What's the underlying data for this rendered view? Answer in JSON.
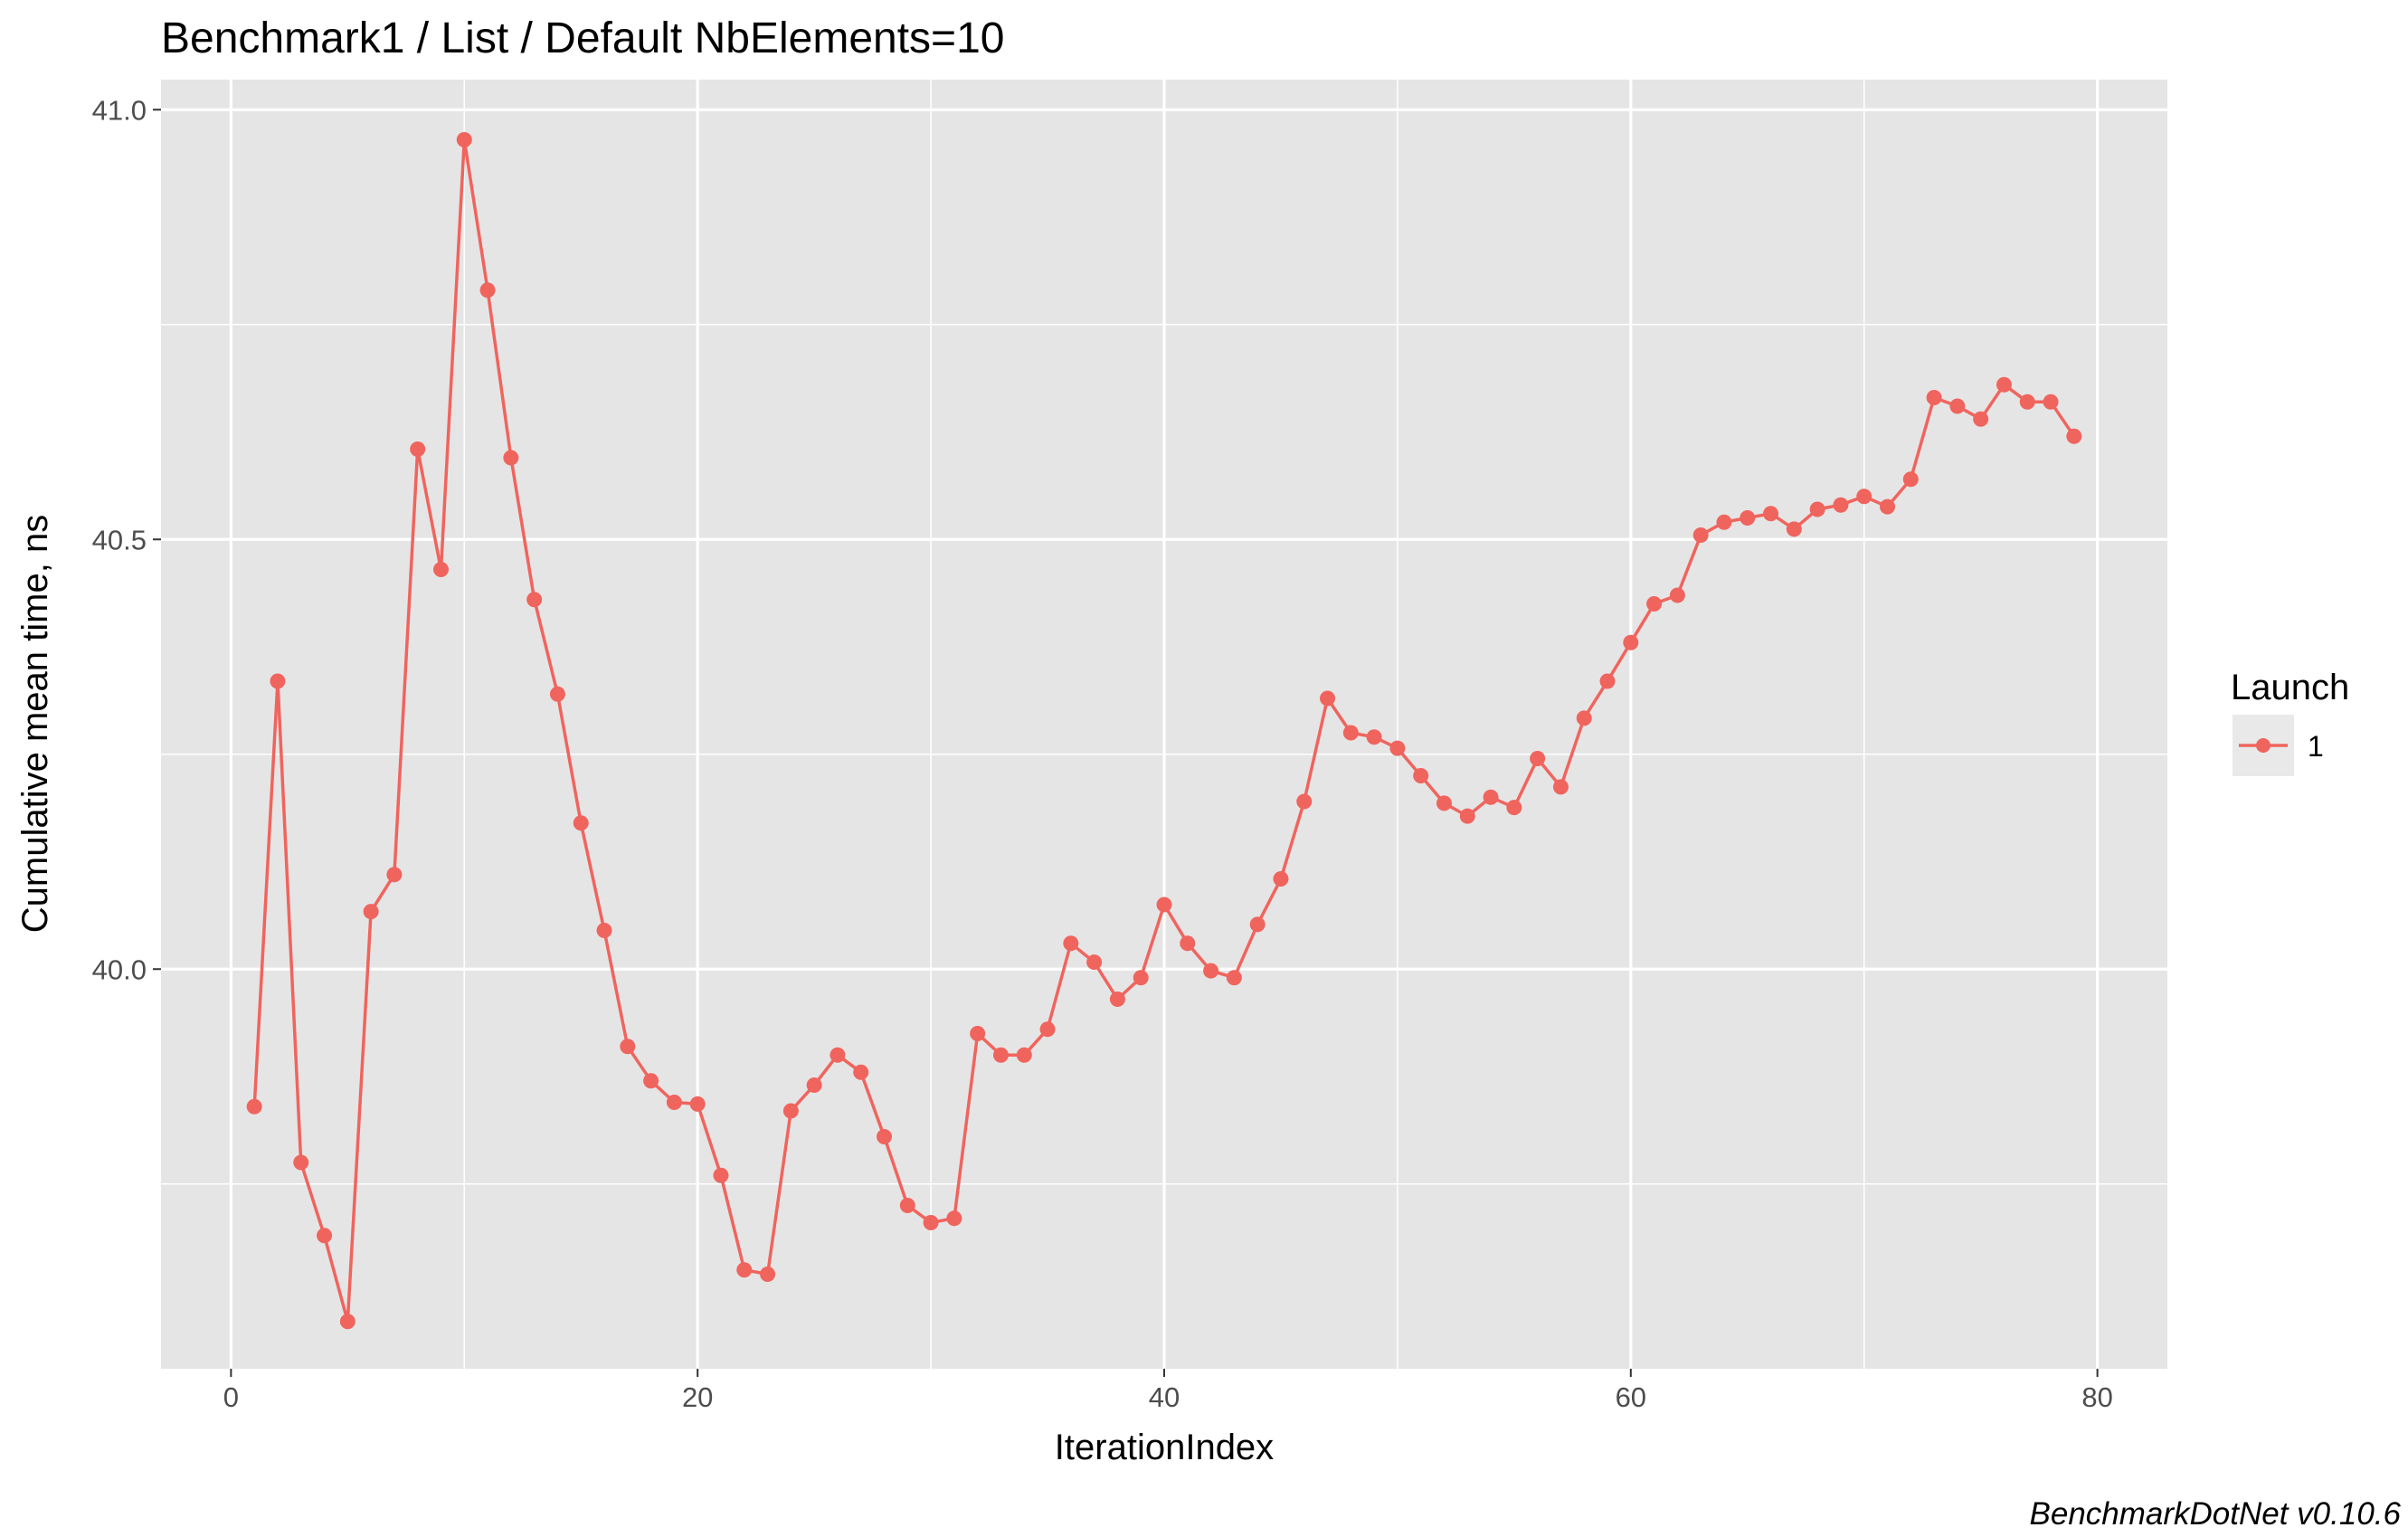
{
  "chart_data": {
    "type": "line",
    "title": "Benchmark1 / List / Default NbElements=10",
    "xlabel": "IterationIndex",
    "ylabel": "Cumulative mean time, ns",
    "caption": "BenchmarkDotNet v0.10.6",
    "xlim": [
      -3,
      83
    ],
    "ylim": [
      39.535,
      41.035
    ],
    "x_ticks": [
      {
        "value": 0,
        "label": "0"
      },
      {
        "value": 20,
        "label": "20"
      },
      {
        "value": 40,
        "label": "40"
      },
      {
        "value": 60,
        "label": "60"
      },
      {
        "value": 80,
        "label": "80"
      }
    ],
    "y_ticks": [
      {
        "value": 40.0,
        "label": "40.0"
      },
      {
        "value": 40.5,
        "label": "40.5"
      },
      {
        "value": 41.0,
        "label": "41.0"
      }
    ],
    "x_minor_ticks": [
      10,
      30,
      50,
      70
    ],
    "y_minor_ticks": [
      39.75,
      40.25,
      40.75
    ],
    "grid": true,
    "legend": {
      "title": "Launch",
      "position": "right"
    },
    "colors": {
      "panel_background": "#e5e5e5",
      "grid": "#ffffff",
      "series": "#f0645e",
      "legend_key_background": "#e9e9e9",
      "tick": "#333333"
    },
    "series": [
      {
        "name": "1",
        "x": [
          1,
          2,
          3,
          4,
          5,
          6,
          7,
          8,
          9,
          10,
          11,
          12,
          13,
          14,
          15,
          16,
          17,
          18,
          19,
          20,
          21,
          22,
          23,
          24,
          25,
          26,
          27,
          28,
          29,
          30,
          31,
          32,
          33,
          34,
          35,
          36,
          37,
          38,
          39,
          40,
          41,
          42,
          43,
          44,
          45,
          46,
          47,
          48,
          49,
          50,
          51,
          52,
          53,
          54,
          55,
          56,
          57,
          58,
          59,
          60,
          61,
          62,
          63,
          64,
          65,
          66,
          67,
          68,
          69,
          70,
          71,
          72,
          73,
          74,
          75,
          76,
          77,
          78,
          79
        ],
        "values": [
          39.84,
          40.335,
          39.775,
          39.69,
          39.59,
          40.067,
          40.11,
          40.605,
          40.465,
          40.965,
          40.79,
          40.595,
          40.43,
          40.32,
          40.17,
          40.045,
          39.91,
          39.87,
          39.845,
          39.843,
          39.76,
          39.65,
          39.645,
          39.835,
          39.865,
          39.9,
          39.88,
          39.805,
          39.725,
          39.705,
          39.71,
          39.925,
          39.9,
          39.9,
          39.93,
          40.03,
          40.008,
          39.965,
          39.99,
          40.075,
          40.03,
          39.998,
          39.99,
          40.052,
          40.105,
          40.195,
          40.315,
          40.275,
          40.27,
          40.257,
          40.225,
          40.193,
          40.178,
          40.2,
          40.188,
          40.245,
          40.212,
          40.292,
          40.335,
          40.38,
          40.425,
          40.435,
          40.505,
          40.52,
          40.525,
          40.53,
          40.512,
          40.535,
          40.54,
          40.55,
          40.538,
          40.57,
          40.665,
          40.655,
          40.64,
          40.68,
          40.66,
          40.66,
          40.62
        ]
      }
    ]
  }
}
